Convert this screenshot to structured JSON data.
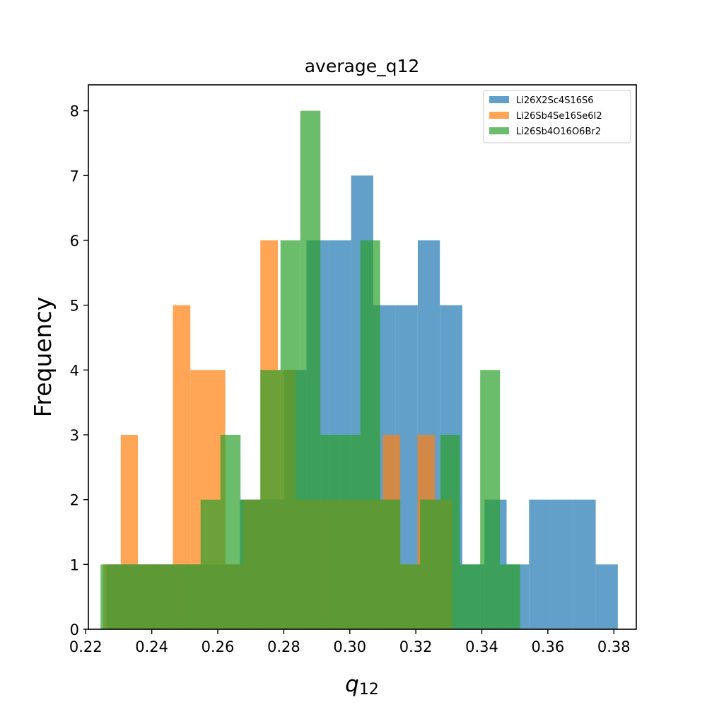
{
  "chart_data": {
    "type": "bar",
    "title": "average_q12",
    "xlabel_base": "q",
    "xlabel_sub": "12",
    "ylabel": "Frequency",
    "xlim": [
      0.2208,
      0.3868
    ],
    "ylim": [
      0,
      8.4
    ],
    "xticks": [
      "0.22",
      "0.24",
      "0.26",
      "0.28",
      "0.30",
      "0.32",
      "0.34",
      "0.36",
      "0.38"
    ],
    "yticks": [
      "0",
      "1",
      "2",
      "3",
      "4",
      "5",
      "6",
      "7",
      "8"
    ],
    "legend_position": "top-right",
    "series": [
      {
        "name": "Li26X2Sc4S16S6",
        "color": "#1f77b4",
        "bins": [
          [
            0.2263,
            0.2331,
            1
          ],
          [
            0.2331,
            0.2398,
            1
          ],
          [
            0.2398,
            0.2465,
            1
          ],
          [
            0.2465,
            0.2533,
            1
          ],
          [
            0.2533,
            0.26,
            1
          ],
          [
            0.26,
            0.2667,
            1
          ],
          [
            0.2667,
            0.2735,
            2
          ],
          [
            0.2735,
            0.2802,
            2
          ],
          [
            0.2802,
            0.2869,
            4
          ],
          [
            0.2869,
            0.2937,
            6
          ],
          [
            0.2937,
            0.3004,
            6
          ],
          [
            0.3004,
            0.3071,
            7
          ],
          [
            0.3071,
            0.3139,
            5
          ],
          [
            0.3139,
            0.3206,
            5
          ],
          [
            0.3206,
            0.3273,
            6
          ],
          [
            0.3273,
            0.3341,
            5
          ],
          [
            0.3341,
            0.3408,
            1
          ],
          [
            0.3408,
            0.3475,
            2
          ],
          [
            0.3475,
            0.3543,
            1
          ],
          [
            0.3543,
            0.361,
            2
          ],
          [
            0.361,
            0.3677,
            2
          ],
          [
            0.3677,
            0.3745,
            2
          ],
          [
            0.3745,
            0.3812,
            1
          ]
        ]
      },
      {
        "name": "Li26Sb4Se16Se6I2",
        "color": "#ff7f0e",
        "bins": [
          [
            0.2253,
            0.2306,
            1
          ],
          [
            0.2306,
            0.2358,
            3
          ],
          [
            0.2358,
            0.2411,
            1
          ],
          [
            0.2411,
            0.2464,
            1
          ],
          [
            0.2464,
            0.2517,
            5
          ],
          [
            0.2517,
            0.257,
            4
          ],
          [
            0.257,
            0.2623,
            4
          ],
          [
            0.2623,
            0.2676,
            1
          ],
          [
            0.2676,
            0.2729,
            2
          ],
          [
            0.2729,
            0.2782,
            6
          ],
          [
            0.2782,
            0.2835,
            4
          ],
          [
            0.2835,
            0.2888,
            2
          ],
          [
            0.2888,
            0.2941,
            2
          ],
          [
            0.2941,
            0.2994,
            2
          ],
          [
            0.2994,
            0.3047,
            2
          ],
          [
            0.3047,
            0.31,
            2
          ],
          [
            0.31,
            0.3153,
            3
          ],
          [
            0.3153,
            0.3205,
            1
          ],
          [
            0.3205,
            0.3258,
            3
          ],
          [
            0.3258,
            0.3311,
            2
          ]
        ]
      },
      {
        "name": "Li26Sb4O16O6Br2",
        "color": "#2ca02c",
        "bins": [
          [
            0.2245,
            0.2306,
            1
          ],
          [
            0.2306,
            0.2366,
            1
          ],
          [
            0.2366,
            0.2427,
            1
          ],
          [
            0.2427,
            0.2487,
            1
          ],
          [
            0.2487,
            0.2548,
            1
          ],
          [
            0.2548,
            0.2608,
            2
          ],
          [
            0.2608,
            0.2669,
            3
          ],
          [
            0.2669,
            0.2729,
            2
          ],
          [
            0.2729,
            0.279,
            4
          ],
          [
            0.279,
            0.285,
            6
          ],
          [
            0.285,
            0.2911,
            8
          ],
          [
            0.2911,
            0.2971,
            3
          ],
          [
            0.2971,
            0.3032,
            3
          ],
          [
            0.3032,
            0.3092,
            6
          ],
          [
            0.3092,
            0.3153,
            2
          ],
          [
            0.3153,
            0.3213,
            1
          ],
          [
            0.3213,
            0.3274,
            2
          ],
          [
            0.3274,
            0.3334,
            3
          ],
          [
            0.3334,
            0.3395,
            1
          ],
          [
            0.3395,
            0.3455,
            4
          ],
          [
            0.3455,
            0.3516,
            1
          ]
        ]
      }
    ]
  }
}
